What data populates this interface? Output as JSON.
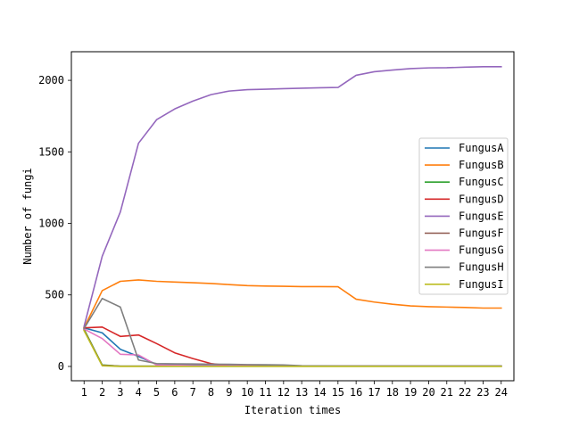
{
  "chart_data": {
    "type": "line",
    "title": "",
    "xlabel": "Iteration times",
    "ylabel": "Number of fungi",
    "x": [
      1,
      2,
      3,
      4,
      5,
      6,
      7,
      8,
      9,
      10,
      11,
      12,
      13,
      14,
      15,
      16,
      17,
      18,
      19,
      20,
      21,
      22,
      23,
      24
    ],
    "xtick_labels": [
      "1",
      "2",
      "3",
      "4",
      "5",
      "6",
      "7",
      "8",
      "9",
      "10",
      "11",
      "12",
      "13",
      "14",
      "15",
      "16",
      "17",
      "18",
      "19",
      "20",
      "21",
      "22",
      "23",
      "24"
    ],
    "yticks": [
      0,
      500,
      1000,
      1500,
      2000
    ],
    "ytick_labels": [
      "0",
      "500",
      "1000",
      "1500",
      "2000"
    ],
    "xlim": [
      0.3,
      24.7
    ],
    "ylim": [
      -100,
      2200
    ],
    "grid": false,
    "legend_position": "right",
    "series": [
      {
        "name": "FungusA",
        "color": "#1f77b4",
        "values": [
          270,
          235,
          120,
          70,
          15,
          12,
          12,
          10,
          8,
          6,
          5,
          4,
          3,
          2,
          2,
          2,
          2,
          2,
          2,
          2,
          2,
          2,
          2,
          2
        ]
      },
      {
        "name": "FungusB",
        "color": "#ff7f0e",
        "values": [
          270,
          530,
          595,
          605,
          595,
          590,
          585,
          580,
          572,
          565,
          562,
          560,
          558,
          558,
          557,
          470,
          450,
          435,
          423,
          418,
          415,
          412,
          408,
          408
        ]
      },
      {
        "name": "FungusC",
        "color": "#2ca02c",
        "values": [
          260,
          10,
          2,
          2,
          2,
          2,
          2,
          2,
          2,
          2,
          2,
          2,
          2,
          2,
          2,
          2,
          2,
          2,
          2,
          2,
          2,
          2,
          2,
          2
        ]
      },
      {
        "name": "FungusD",
        "color": "#d62728",
        "values": [
          270,
          275,
          210,
          220,
          160,
          95,
          55,
          20,
          5,
          3,
          2,
          2,
          2,
          2,
          2,
          2,
          2,
          2,
          2,
          2,
          2,
          2,
          2,
          2
        ]
      },
      {
        "name": "FungusE",
        "color": "#9467bd",
        "values": [
          280,
          770,
          1080,
          1560,
          1725,
          1800,
          1855,
          1900,
          1925,
          1935,
          1938,
          1942,
          1945,
          1948,
          1950,
          2035,
          2060,
          2072,
          2082,
          2087,
          2088,
          2092,
          2095,
          2095
        ]
      },
      {
        "name": "FungusF",
        "color": "#8c564b",
        "values": [
          255,
          8,
          2,
          2,
          2,
          2,
          2,
          2,
          2,
          2,
          2,
          2,
          2,
          2,
          2,
          2,
          2,
          2,
          2,
          2,
          2,
          2,
          2,
          2
        ]
      },
      {
        "name": "FungusG",
        "color": "#e377c2",
        "values": [
          262,
          195,
          85,
          80,
          10,
          8,
          6,
          5,
          4,
          3,
          2,
          2,
          2,
          2,
          2,
          2,
          2,
          2,
          2,
          2,
          2,
          2,
          2,
          2
        ]
      },
      {
        "name": "FungusH",
        "color": "#7f7f7f",
        "values": [
          265,
          475,
          415,
          45,
          20,
          18,
          17,
          16,
          15,
          13,
          12,
          10,
          5,
          4,
          3,
          3,
          3,
          3,
          3,
          3,
          3,
          3,
          3,
          3
        ]
      },
      {
        "name": "FungusI",
        "color": "#bcbd22",
        "values": [
          250,
          5,
          0,
          0,
          0,
          0,
          0,
          0,
          0,
          0,
          0,
          0,
          0,
          0,
          0,
          0,
          0,
          0,
          0,
          0,
          0,
          0,
          0,
          0
        ]
      }
    ]
  }
}
